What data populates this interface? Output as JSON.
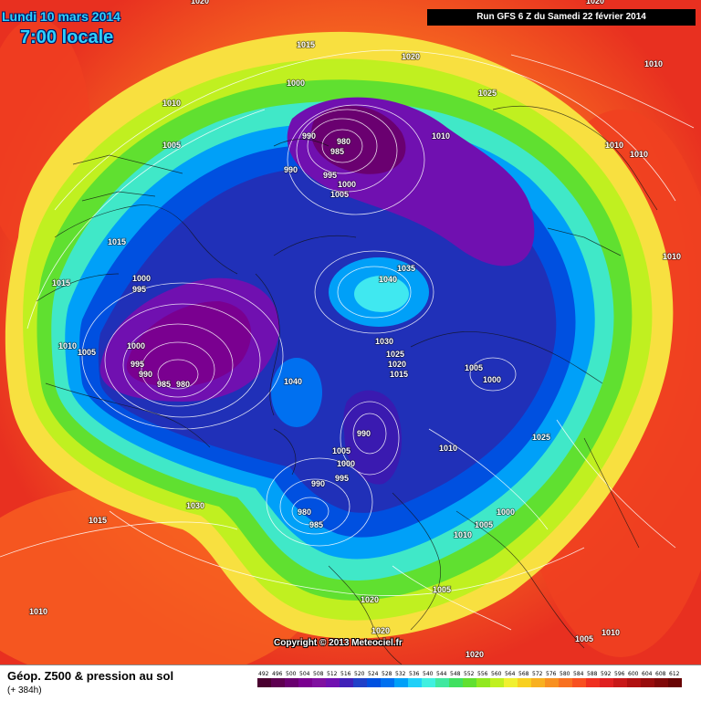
{
  "header": {
    "date": "Lundi 10 mars 2014",
    "time": "7:00 locale",
    "run": "Run GFS 6 Z du Samedi 22 février 2014"
  },
  "copyright": "Copyright © 2013 Meteociel.fr",
  "footer": {
    "title": "Géop. Z500 & pression au sol",
    "subtitle": "(+ 384h)"
  },
  "legend": {
    "values": [
      "492",
      "496",
      "500",
      "504",
      "508",
      "512",
      "516",
      "520",
      "524",
      "528",
      "532",
      "536",
      "540",
      "544",
      "548",
      "552",
      "556",
      "560",
      "564",
      "568",
      "572",
      "576",
      "580",
      "584",
      "588",
      "592",
      "596",
      "600",
      "604",
      "608",
      "612"
    ],
    "colors": [
      "#4a0030",
      "#5e0050",
      "#6a0070",
      "#7a0090",
      "#8010a0",
      "#7010b0",
      "#4020b8",
      "#2040c8",
      "#0050e0",
      "#0070f0",
      "#00a0f8",
      "#20d0f8",
      "#40f0e0",
      "#40e8a0",
      "#40e060",
      "#60e030",
      "#90e820",
      "#c0f020",
      "#f0f030",
      "#f8d020",
      "#f8b020",
      "#f89020",
      "#f87020",
      "#f85020",
      "#f03020",
      "#e02020",
      "#c81818",
      "#b01010",
      "#980c0c",
      "#800808",
      "#680404"
    ]
  },
  "isobars": [
    "1020",
    "1020",
    "1015",
    "1020",
    "1000",
    "1025",
    "1010",
    "1010",
    "1005",
    "990",
    "980",
    "985",
    "1010",
    "1010",
    "1010",
    "990",
    "995",
    "1000",
    "1005",
    "1015",
    "1015",
    "1000",
    "995",
    "1035",
    "1040",
    "1010",
    "1010",
    "1005",
    "1000",
    "995",
    "990",
    "985",
    "980",
    "1030",
    "1025",
    "1040",
    "1020",
    "1015",
    "1005",
    "1000",
    "990",
    "1010",
    "1025",
    "1005",
    "1000",
    "995",
    "990",
    "980",
    "985",
    "1030",
    "1015",
    "1000",
    "1010",
    "1005",
    "1010",
    "1005",
    "1020",
    "1020",
    "1005",
    "1010",
    "1020"
  ]
}
